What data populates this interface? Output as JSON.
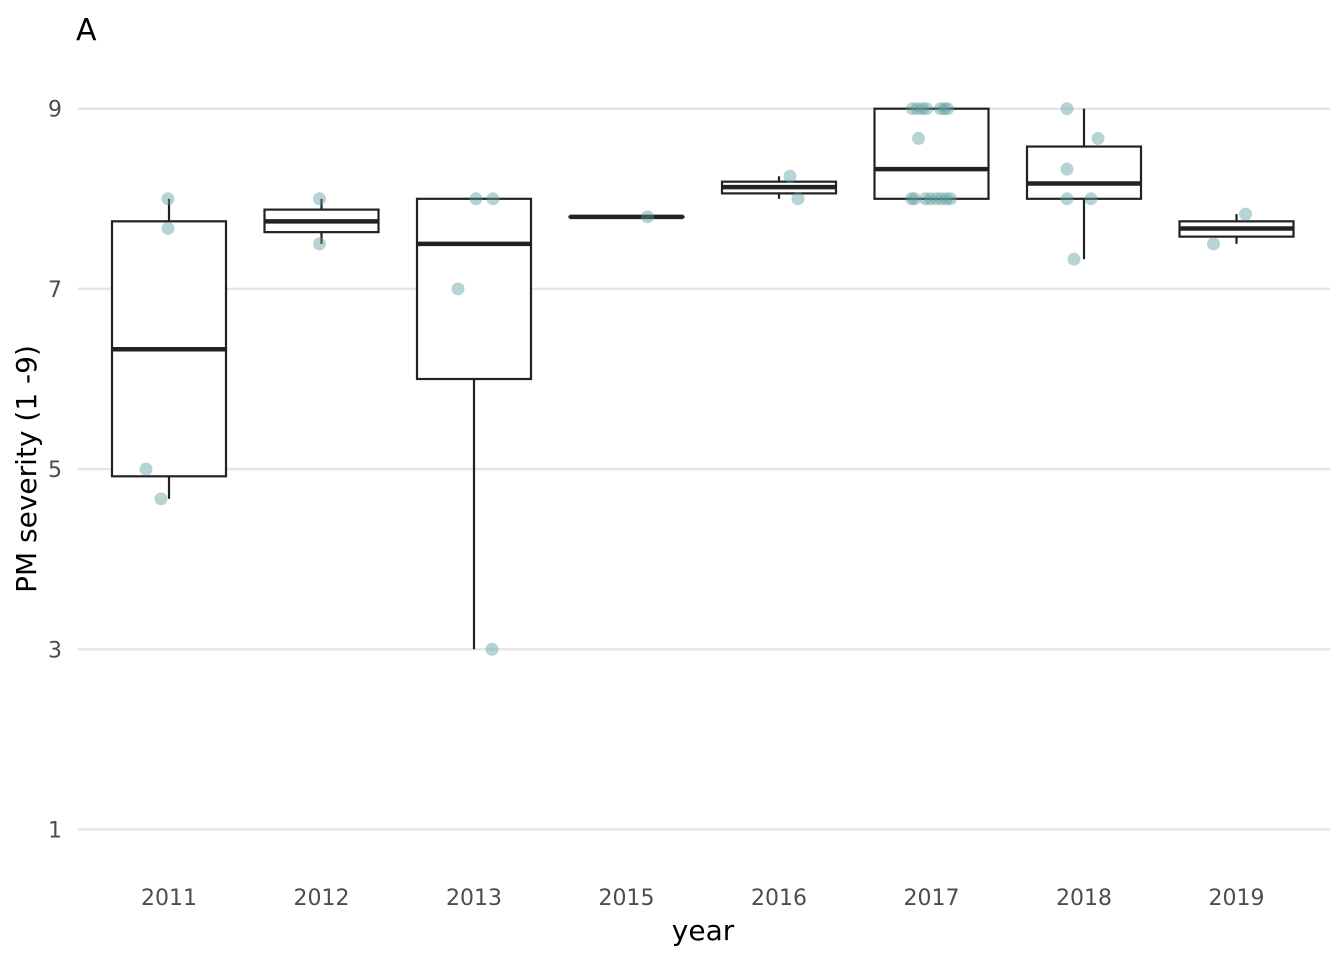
{
  "panel_label": "A",
  "chart_data": {
    "type": "box",
    "title": "",
    "xlabel": "year",
    "ylabel": "PM severity (1 -9)",
    "ylim": [
      0.5,
      9.75
    ],
    "yticks": [
      1,
      3,
      5,
      7,
      9
    ],
    "grid": "horizontal",
    "point_color": "#5f9ea0",
    "categories": [
      "2011",
      "2012",
      "2013",
      "2015",
      "2016",
      "2017",
      "2018",
      "2019"
    ],
    "boxes": [
      {
        "category": "2011",
        "lower_whisker": 4.67,
        "q1": 4.92,
        "median": 6.33,
        "q3": 7.75,
        "upper_whisker": 8.0
      },
      {
        "category": "2012",
        "lower_whisker": 7.5,
        "q1": 7.63,
        "median": 7.75,
        "q3": 7.88,
        "upper_whisker": 8.0
      },
      {
        "category": "2013",
        "lower_whisker": 3.0,
        "q1": 6.0,
        "median": 7.5,
        "q3": 8.0,
        "upper_whisker": 8.0
      },
      {
        "category": "2015",
        "lower_whisker": 7.8,
        "q1": 7.8,
        "median": 7.8,
        "q3": 7.8,
        "upper_whisker": 7.8
      },
      {
        "category": "2016",
        "lower_whisker": 8.0,
        "q1": 8.06,
        "median": 8.13,
        "q3": 8.19,
        "upper_whisker": 8.25
      },
      {
        "category": "2017",
        "lower_whisker": 8.0,
        "q1": 8.0,
        "median": 8.33,
        "q3": 9.0,
        "upper_whisker": 9.0
      },
      {
        "category": "2018",
        "lower_whisker": 7.33,
        "q1": 8.0,
        "median": 8.17,
        "q3": 8.58,
        "upper_whisker": 9.0
      },
      {
        "category": "2019",
        "lower_whisker": 7.5,
        "q1": 7.58,
        "median": 7.67,
        "q3": 7.75,
        "upper_whisker": 7.83
      }
    ],
    "points": [
      {
        "category": "2011",
        "values": [
          8.0,
          7.67,
          5.0,
          4.67
        ]
      },
      {
        "category": "2012",
        "values": [
          8.0,
          7.5
        ]
      },
      {
        "category": "2013",
        "values": [
          8.0,
          8.0,
          7.0,
          3.0
        ]
      },
      {
        "category": "2015",
        "values": [
          7.8
        ]
      },
      {
        "category": "2016",
        "values": [
          8.25,
          8.0
        ]
      },
      {
        "category": "2017",
        "values": [
          9,
          9,
          9,
          9,
          9,
          9,
          9,
          8.67,
          8,
          8,
          8,
          8,
          8,
          8,
          8,
          8
        ]
      },
      {
        "category": "2018",
        "values": [
          9.0,
          8.67,
          8.33,
          8.0,
          8.0,
          7.33
        ]
      },
      {
        "category": "2019",
        "values": [
          7.83,
          7.5
        ]
      }
    ]
  }
}
